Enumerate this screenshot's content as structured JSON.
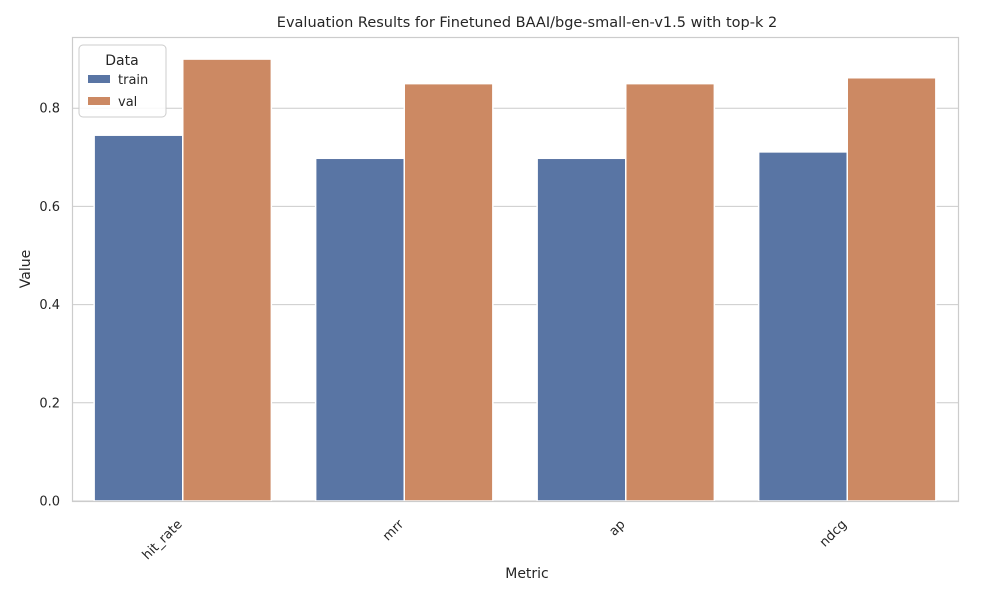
{
  "chart_data": {
    "type": "bar",
    "title": "Evaluation Results for Finetuned BAAI/bge-small-en-v1.5 with top-k 2",
    "xlabel": "Metric",
    "ylabel": "Value",
    "categories": [
      "hit_rate",
      "mrr",
      "ap",
      "ndcg"
    ],
    "series": [
      {
        "name": "train",
        "color": "#5975a4",
        "values": [
          0.745,
          0.698,
          0.698,
          0.711
        ]
      },
      {
        "name": "val",
        "color": "#cc8963",
        "values": [
          0.9,
          0.85,
          0.85,
          0.862
        ]
      }
    ],
    "ylim": [
      0,
      0.945
    ],
    "yticks": [
      0.0,
      0.2,
      0.4,
      0.6,
      0.8
    ],
    "ytick_labels": [
      "0.0",
      "0.2",
      "0.4",
      "0.6",
      "0.8"
    ],
    "grid": true,
    "legend": {
      "title": "Data",
      "placement": "top-left"
    }
  }
}
